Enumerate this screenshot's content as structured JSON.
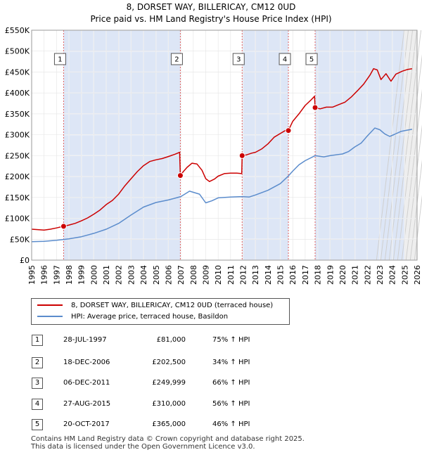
{
  "chart_data": {
    "type": "line",
    "title": "8, DORSET WAY, BILLERICAY, CM12 0UD",
    "subtitle": "Price paid vs. HM Land Registry's House Price Index (HPI)",
    "xlim": [
      1995,
      2026
    ],
    "ylim": [
      0,
      550000
    ],
    "x_ticks": [
      1995,
      1996,
      1997,
      1998,
      1999,
      2000,
      2001,
      2002,
      2003,
      2004,
      2005,
      2006,
      2007,
      2008,
      2009,
      2010,
      2011,
      2012,
      2013,
      2014,
      2015,
      2016,
      2017,
      2018,
      2019,
      2020,
      2021,
      2022,
      2023,
      2024,
      2025,
      2026
    ],
    "y_ticks": [
      {
        "value": 0,
        "label": "£0"
      },
      {
        "value": 50000,
        "label": "£50K"
      },
      {
        "value": 100000,
        "label": "£100K"
      },
      {
        "value": 150000,
        "label": "£150K"
      },
      {
        "value": 200000,
        "label": "£200K"
      },
      {
        "value": 250000,
        "label": "£250K"
      },
      {
        "value": 300000,
        "label": "£300K"
      },
      {
        "value": 350000,
        "label": "£350K"
      },
      {
        "value": 400000,
        "label": "£400K"
      },
      {
        "value": 450000,
        "label": "£450K"
      },
      {
        "value": 500000,
        "label": "£500K"
      },
      {
        "value": 550000,
        "label": "£550K"
      }
    ],
    "series": [
      {
        "name": "8, DORSET WAY, BILLERICAY, CM12 0UD (terraced house)",
        "color": "#cc0000",
        "points": [
          [
            1995.0,
            74000
          ],
          [
            1995.5,
            73000
          ],
          [
            1996.0,
            72000
          ],
          [
            1996.5,
            74000
          ],
          [
            1997.0,
            77000
          ],
          [
            1997.57,
            81000
          ],
          [
            1998.0,
            84000
          ],
          [
            1998.5,
            88000
          ],
          [
            1999.0,
            94000
          ],
          [
            1999.5,
            101000
          ],
          [
            2000.0,
            110000
          ],
          [
            2000.5,
            120000
          ],
          [
            2001.0,
            133000
          ],
          [
            2001.5,
            143000
          ],
          [
            2002.0,
            158000
          ],
          [
            2002.5,
            178000
          ],
          [
            2003.0,
            195000
          ],
          [
            2003.5,
            212000
          ],
          [
            2004.0,
            226000
          ],
          [
            2004.5,
            236000
          ],
          [
            2005.0,
            240000
          ],
          [
            2005.5,
            243000
          ],
          [
            2006.0,
            248000
          ],
          [
            2006.5,
            253000
          ],
          [
            2006.9,
            258000
          ],
          [
            2006.96,
            202500
          ],
          [
            2007.2,
            212000
          ],
          [
            2007.5,
            222000
          ],
          [
            2007.9,
            232000
          ],
          [
            2008.3,
            230000
          ],
          [
            2008.7,
            215000
          ],
          [
            2009.0,
            195000
          ],
          [
            2009.3,
            188000
          ],
          [
            2009.7,
            194000
          ],
          [
            2010.0,
            201000
          ],
          [
            2010.5,
            207000
          ],
          [
            2011.0,
            208000
          ],
          [
            2011.5,
            208000
          ],
          [
            2011.9,
            207000
          ],
          [
            2011.93,
            249999
          ],
          [
            2012.3,
            252000
          ],
          [
            2012.7,
            256000
          ],
          [
            2013.0,
            258000
          ],
          [
            2013.5,
            266000
          ],
          [
            2014.0,
            278000
          ],
          [
            2014.5,
            294000
          ],
          [
            2015.0,
            303000
          ],
          [
            2015.4,
            310000
          ],
          [
            2015.65,
            310000
          ],
          [
            2016.0,
            332000
          ],
          [
            2016.5,
            350000
          ],
          [
            2017.0,
            370000
          ],
          [
            2017.5,
            384000
          ],
          [
            2017.75,
            392000
          ],
          [
            2017.8,
            365000
          ],
          [
            2018.2,
            362000
          ],
          [
            2018.7,
            366000
          ],
          [
            2019.2,
            366000
          ],
          [
            2019.7,
            372000
          ],
          [
            2020.2,
            378000
          ],
          [
            2020.7,
            390000
          ],
          [
            2021.2,
            405000
          ],
          [
            2021.7,
            421000
          ],
          [
            2022.2,
            442000
          ],
          [
            2022.5,
            458000
          ],
          [
            2022.8,
            455000
          ],
          [
            2023.1,
            432000
          ],
          [
            2023.5,
            446000
          ],
          [
            2023.9,
            428000
          ],
          [
            2024.3,
            445000
          ],
          [
            2024.8,
            452000
          ],
          [
            2025.2,
            456000
          ],
          [
            2025.6,
            458000
          ]
        ]
      },
      {
        "name": "HPI: Average price, terraced house, Basildon",
        "color": "#5b8ccc",
        "points": [
          [
            1995.0,
            44000
          ],
          [
            1996.0,
            45000
          ],
          [
            1997.0,
            47500
          ],
          [
            1998.0,
            51000
          ],
          [
            1999.0,
            56000
          ],
          [
            2000.0,
            64000
          ],
          [
            2001.0,
            74000
          ],
          [
            2002.0,
            88000
          ],
          [
            2003.0,
            108000
          ],
          [
            2004.0,
            127000
          ],
          [
            2005.0,
            138000
          ],
          [
            2006.0,
            144000
          ],
          [
            2007.0,
            152000
          ],
          [
            2007.7,
            165000
          ],
          [
            2008.5,
            158000
          ],
          [
            2009.0,
            137000
          ],
          [
            2009.5,
            142000
          ],
          [
            2010.0,
            149000
          ],
          [
            2011.0,
            151000
          ],
          [
            2011.9,
            152000
          ],
          [
            2012.5,
            151000
          ],
          [
            2013.0,
            156000
          ],
          [
            2014.0,
            167000
          ],
          [
            2015.0,
            183000
          ],
          [
            2015.6,
            200000
          ],
          [
            2016.0,
            213000
          ],
          [
            2016.5,
            228000
          ],
          [
            2017.0,
            238000
          ],
          [
            2017.8,
            250000
          ],
          [
            2018.5,
            247000
          ],
          [
            2019.0,
            250000
          ],
          [
            2020.0,
            254000
          ],
          [
            2020.5,
            260000
          ],
          [
            2021.0,
            271000
          ],
          [
            2021.5,
            280000
          ],
          [
            2022.0,
            297000
          ],
          [
            2022.6,
            316000
          ],
          [
            2023.0,
            312000
          ],
          [
            2023.4,
            302000
          ],
          [
            2023.8,
            296000
          ],
          [
            2024.2,
            301000
          ],
          [
            2024.7,
            308000
          ],
          [
            2025.2,
            311000
          ],
          [
            2025.6,
            313000
          ]
        ]
      }
    ],
    "sales": [
      {
        "num": "1",
        "x": 1997.57,
        "price": 81000
      },
      {
        "num": "2",
        "x": 2006.96,
        "price": 202500
      },
      {
        "num": "3",
        "x": 2011.93,
        "price": 249999
      },
      {
        "num": "4",
        "x": 2015.65,
        "price": 310000
      },
      {
        "num": "5",
        "x": 2017.8,
        "price": 365000
      }
    ],
    "shaded_spans": [
      [
        1997.57,
        2006.96
      ],
      [
        2011.93,
        2015.65
      ],
      [
        2017.8,
        2025.0
      ]
    ],
    "forecast_start": 2025.0,
    "grid": true,
    "legend": "bottom"
  },
  "legend_entries": [
    {
      "label": "8, DORSET WAY, BILLERICAY, CM12 0UD (terraced house)",
      "color": "#cc0000"
    },
    {
      "label": "HPI: Average price, terraced house, Basildon",
      "color": "#5b8ccc"
    }
  ],
  "sales_table": [
    {
      "num": "1",
      "date": "28-JUL-1997",
      "price": "£81,000",
      "hpi": "75% ↑ HPI"
    },
    {
      "num": "2",
      "date": "18-DEC-2006",
      "price": "£202,500",
      "hpi": "34% ↑ HPI"
    },
    {
      "num": "3",
      "date": "06-DEC-2011",
      "price": "£249,999",
      "hpi": "66% ↑ HPI"
    },
    {
      "num": "4",
      "date": "27-AUG-2015",
      "price": "£310,000",
      "hpi": "56% ↑ HPI"
    },
    {
      "num": "5",
      "date": "20-OCT-2017",
      "price": "£365,000",
      "hpi": "46% ↑ HPI"
    }
  ],
  "footer": {
    "line1": "Contains HM Land Registry data © Crown copyright and database right 2025.",
    "line2": "This data is licensed under the Open Government Licence v3.0."
  }
}
